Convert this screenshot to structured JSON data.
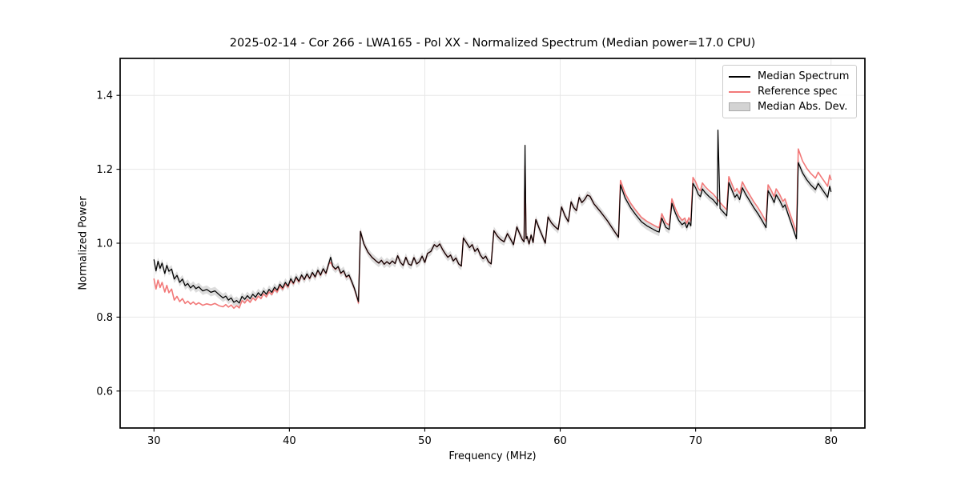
{
  "figure": {
    "title": "2025-02-14 - Cor 266 - LWA165 - Pol XX - Normalized Spectrum (Median power=17.0 CPU)",
    "xlabel": "Frequency (MHz)",
    "ylabel": "Normalized Power",
    "background": "#ffffff"
  },
  "legend": {
    "items": [
      {
        "label": "Median Spectrum",
        "type": "line",
        "color": "#000000"
      },
      {
        "label": "Reference spec",
        "type": "line",
        "color": "#f27979"
      },
      {
        "label": "Median Abs. Dev.",
        "type": "patch",
        "color": "#d3d3d3",
        "edge": "#a9a9a9"
      }
    ]
  },
  "chart_data": {
    "type": "line",
    "title": "2025-02-14 - Cor 266 - LWA165 - Pol XX - Normalized Spectrum (Median power=17.0 CPU)",
    "xlabel": "Frequency (MHz)",
    "ylabel": "Normalized Power",
    "xlim": [
      27.5,
      82.5
    ],
    "ylim": [
      0.5,
      1.5
    ],
    "xticks": [
      30,
      40,
      50,
      60,
      70,
      80
    ],
    "yticks": [
      0.6,
      0.8,
      1.0,
      1.2,
      1.4
    ],
    "grid": true,
    "grid_color": "#e7e7e7",
    "legend_position": "upper right",
    "x": [
      30.0,
      30.15,
      30.3,
      30.45,
      30.6,
      30.8,
      30.95,
      31.1,
      31.3,
      31.5,
      31.7,
      31.9,
      32.1,
      32.3,
      32.5,
      32.7,
      32.9,
      33.1,
      33.3,
      33.6,
      33.9,
      34.2,
      34.5,
      34.8,
      35.1,
      35.3,
      35.5,
      35.7,
      35.9,
      36.1,
      36.3,
      36.5,
      36.7,
      36.9,
      37.1,
      37.3,
      37.5,
      37.7,
      37.9,
      38.1,
      38.3,
      38.5,
      38.7,
      38.9,
      39.1,
      39.3,
      39.5,
      39.7,
      39.9,
      40.1,
      40.3,
      40.5,
      40.7,
      40.9,
      41.1,
      41.3,
      41.5,
      41.7,
      41.9,
      42.1,
      42.3,
      42.5,
      42.7,
      42.9,
      43.05,
      43.2,
      43.4,
      43.6,
      43.8,
      44.0,
      44.2,
      44.4,
      44.6,
      44.8,
      45.0,
      45.1,
      45.25,
      45.5,
      45.8,
      46.1,
      46.4,
      46.6,
      46.8,
      47.0,
      47.2,
      47.4,
      47.6,
      47.8,
      48.0,
      48.2,
      48.4,
      48.6,
      48.8,
      49.0,
      49.2,
      49.4,
      49.6,
      49.8,
      50.0,
      50.2,
      50.45,
      50.7,
      50.9,
      51.1,
      51.3,
      51.5,
      51.7,
      51.9,
      52.1,
      52.3,
      52.5,
      52.7,
      52.85,
      53.1,
      53.3,
      53.5,
      53.7,
      53.9,
      54.1,
      54.3,
      54.5,
      54.7,
      54.9,
      55.1,
      55.35,
      55.6,
      55.85,
      56.1,
      56.35,
      56.55,
      56.8,
      57.0,
      57.2,
      57.33,
      57.4,
      57.48,
      57.55,
      57.7,
      57.85,
      58.0,
      58.2,
      58.45,
      58.7,
      58.9,
      59.1,
      59.35,
      59.6,
      59.85,
      60.1,
      60.35,
      60.6,
      60.8,
      61.0,
      61.2,
      61.4,
      61.6,
      61.8,
      62.0,
      62.2,
      62.5,
      63.0,
      63.5,
      64.0,
      64.3,
      64.45,
      64.8,
      65.2,
      65.6,
      66.0,
      66.4,
      66.8,
      67.1,
      67.3,
      67.5,
      67.8,
      68.05,
      68.25,
      68.5,
      68.75,
      69.0,
      69.2,
      69.35,
      69.5,
      69.65,
      69.8,
      70.0,
      70.2,
      70.35,
      70.5,
      70.7,
      71.0,
      71.3,
      71.55,
      71.6,
      71.65,
      71.8,
      72.0,
      72.3,
      72.45,
      72.7,
      72.9,
      73.05,
      73.25,
      73.45,
      73.7,
      74.0,
      74.3,
      74.6,
      74.9,
      75.2,
      75.35,
      75.6,
      75.8,
      75.95,
      76.2,
      76.45,
      76.6,
      76.85,
      77.1,
      77.45,
      77.58,
      77.9,
      78.2,
      78.5,
      78.85,
      79.05,
      79.3,
      79.55,
      79.75,
      79.9,
      80.0
    ],
    "series": [
      {
        "name": "Median Spectrum",
        "color": "#000000",
        "values": [
          0.955,
          0.925,
          0.951,
          0.932,
          0.946,
          0.918,
          0.94,
          0.924,
          0.93,
          0.903,
          0.913,
          0.894,
          0.903,
          0.885,
          0.891,
          0.879,
          0.886,
          0.877,
          0.882,
          0.871,
          0.875,
          0.867,
          0.871,
          0.861,
          0.852,
          0.857,
          0.846,
          0.852,
          0.84,
          0.845,
          0.838,
          0.856,
          0.848,
          0.858,
          0.85,
          0.862,
          0.854,
          0.866,
          0.858,
          0.871,
          0.862,
          0.875,
          0.867,
          0.881,
          0.873,
          0.889,
          0.879,
          0.894,
          0.884,
          0.904,
          0.892,
          0.909,
          0.897,
          0.914,
          0.902,
          0.917,
          0.905,
          0.921,
          0.909,
          0.927,
          0.914,
          0.931,
          0.919,
          0.944,
          0.962,
          0.938,
          0.93,
          0.937,
          0.919,
          0.926,
          0.909,
          0.914,
          0.897,
          0.878,
          0.854,
          0.842,
          1.032,
          0.998,
          0.976,
          0.962,
          0.952,
          0.946,
          0.954,
          0.943,
          0.95,
          0.944,
          0.952,
          0.945,
          0.966,
          0.948,
          0.94,
          0.962,
          0.944,
          0.94,
          0.961,
          0.944,
          0.95,
          0.965,
          0.948,
          0.972,
          0.978,
          0.996,
          0.99,
          0.998,
          0.984,
          0.972,
          0.962,
          0.968,
          0.952,
          0.96,
          0.944,
          0.938,
          1.014,
          1.0,
          0.988,
          0.996,
          0.978,
          0.986,
          0.968,
          0.958,
          0.965,
          0.95,
          0.944,
          1.034,
          1.02,
          1.01,
          1.004,
          1.026,
          1.01,
          0.996,
          1.044,
          1.026,
          1.01,
          1.004,
          1.265,
          1.012,
          1.018,
          0.998,
          1.022,
          1.002,
          1.064,
          1.04,
          1.018,
          1.0,
          1.071,
          1.055,
          1.045,
          1.037,
          1.098,
          1.074,
          1.058,
          1.112,
          1.096,
          1.088,
          1.124,
          1.11,
          1.118,
          1.13,
          1.127,
          1.106,
          1.084,
          1.06,
          1.032,
          1.016,
          1.158,
          1.122,
          1.096,
          1.076,
          1.058,
          1.047,
          1.039,
          1.033,
          1.03,
          1.068,
          1.043,
          1.037,
          1.108,
          1.082,
          1.062,
          1.05,
          1.056,
          1.042,
          1.057,
          1.047,
          1.162,
          1.15,
          1.132,
          1.126,
          1.147,
          1.137,
          1.126,
          1.117,
          1.106,
          1.102,
          1.306,
          1.094,
          1.086,
          1.074,
          1.164,
          1.142,
          1.124,
          1.132,
          1.118,
          1.15,
          1.132,
          1.114,
          1.096,
          1.08,
          1.062,
          1.042,
          1.142,
          1.126,
          1.11,
          1.131,
          1.116,
          1.097,
          1.104,
          1.076,
          1.05,
          1.012,
          1.218,
          1.19,
          1.172,
          1.158,
          1.145,
          1.162,
          1.148,
          1.135,
          1.124,
          1.154,
          1.14
        ]
      },
      {
        "name": "Reference spec",
        "color": "#f27979",
        "values": [
          0.903,
          0.876,
          0.9,
          0.88,
          0.894,
          0.868,
          0.886,
          0.866,
          0.876,
          0.846,
          0.856,
          0.842,
          0.85,
          0.837,
          0.843,
          0.835,
          0.841,
          0.834,
          0.839,
          0.832,
          0.836,
          0.833,
          0.837,
          0.831,
          0.828,
          0.834,
          0.827,
          0.833,
          0.824,
          0.831,
          0.825,
          0.845,
          0.838,
          0.848,
          0.84,
          0.852,
          0.845,
          0.857,
          0.85,
          0.863,
          0.855,
          0.868,
          0.861,
          0.875,
          0.868,
          0.884,
          0.875,
          0.89,
          0.881,
          0.901,
          0.89,
          0.907,
          0.895,
          0.913,
          0.901,
          0.916,
          0.904,
          0.92,
          0.908,
          0.926,
          0.913,
          0.93,
          0.918,
          0.943,
          0.948,
          0.937,
          0.929,
          0.936,
          0.918,
          0.925,
          0.908,
          0.913,
          0.896,
          0.877,
          0.852,
          0.838,
          1.032,
          0.998,
          0.976,
          0.962,
          0.952,
          0.946,
          0.954,
          0.943,
          0.95,
          0.944,
          0.952,
          0.945,
          0.966,
          0.948,
          0.94,
          0.962,
          0.944,
          0.94,
          0.961,
          0.944,
          0.95,
          0.965,
          0.948,
          0.972,
          0.978,
          0.996,
          0.99,
          0.998,
          0.984,
          0.972,
          0.962,
          0.968,
          0.952,
          0.96,
          0.944,
          0.938,
          1.014,
          1.0,
          0.988,
          0.996,
          0.978,
          0.986,
          0.968,
          0.958,
          0.965,
          0.95,
          0.944,
          1.034,
          1.02,
          1.01,
          1.004,
          1.026,
          1.01,
          0.996,
          1.044,
          1.026,
          1.01,
          1.004,
          1.21,
          1.012,
          1.018,
          0.998,
          1.022,
          1.002,
          1.064,
          1.04,
          1.018,
          1.0,
          1.071,
          1.055,
          1.045,
          1.037,
          1.098,
          1.074,
          1.058,
          1.112,
          1.096,
          1.088,
          1.124,
          1.11,
          1.118,
          1.13,
          1.127,
          1.106,
          1.084,
          1.06,
          1.032,
          1.016,
          1.17,
          1.134,
          1.108,
          1.088,
          1.07,
          1.059,
          1.051,
          1.045,
          1.042,
          1.08,
          1.055,
          1.049,
          1.12,
          1.094,
          1.074,
          1.062,
          1.068,
          1.054,
          1.069,
          1.059,
          1.178,
          1.166,
          1.148,
          1.142,
          1.163,
          1.153,
          1.142,
          1.133,
          1.122,
          1.118,
          1.118,
          1.11,
          1.102,
          1.09,
          1.18,
          1.158,
          1.14,
          1.148,
          1.134,
          1.166,
          1.148,
          1.13,
          1.112,
          1.096,
          1.078,
          1.058,
          1.158,
          1.142,
          1.126,
          1.147,
          1.132,
          1.113,
          1.12,
          1.092,
          1.066,
          1.03,
          1.255,
          1.222,
          1.203,
          1.189,
          1.176,
          1.192,
          1.178,
          1.165,
          1.154,
          1.184,
          1.172
        ]
      },
      {
        "name": "Median Abs. Dev.",
        "type": "band",
        "band_around": "Median Spectrum",
        "half_width": 0.011,
        "color": "#dcdcdc"
      }
    ]
  }
}
